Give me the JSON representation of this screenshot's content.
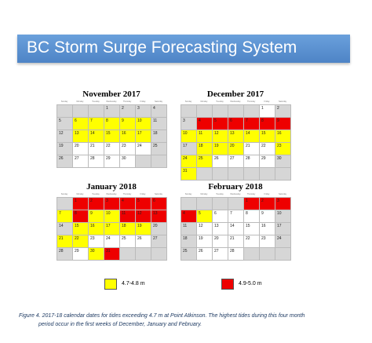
{
  "header": {
    "title": "BC Storm Surge Forecasting System"
  },
  "colors": {
    "yellow": "#ffff00",
    "red": "#ee0000",
    "gray": "#d6d6d6"
  },
  "weekday_labels": [
    "Sunday",
    "Monday",
    "Tuesday",
    "Wednesday",
    "Thursday",
    "Friday",
    "Saturday"
  ],
  "calendars": [
    {
      "title": "November 2017",
      "cells": [
        [
          "",
          "gray"
        ],
        [
          "",
          "gray"
        ],
        [
          "",
          "gray"
        ],
        [
          "1",
          "gray"
        ],
        [
          "2",
          "gray"
        ],
        [
          "3",
          "gray"
        ],
        [
          "4",
          "gray"
        ],
        [
          "5",
          "gray"
        ],
        [
          "6",
          "yellow"
        ],
        [
          "7",
          "yellow"
        ],
        [
          "8",
          "yellow"
        ],
        [
          "9",
          "yellow"
        ],
        [
          "10",
          "yellow"
        ],
        [
          "11",
          "gray"
        ],
        [
          "12",
          "gray"
        ],
        [
          "13",
          "yellow"
        ],
        [
          "14",
          "yellow"
        ],
        [
          "15",
          "yellow"
        ],
        [
          "16",
          "yellow"
        ],
        [
          "17",
          "yellow"
        ],
        [
          "18",
          "gray"
        ],
        [
          "19",
          "gray"
        ],
        [
          "20",
          ""
        ],
        [
          "21",
          ""
        ],
        [
          "22",
          ""
        ],
        [
          "23",
          ""
        ],
        [
          "24",
          ""
        ],
        [
          "25",
          "gray"
        ],
        [
          "26",
          "gray"
        ],
        [
          "27",
          ""
        ],
        [
          "28",
          ""
        ],
        [
          "29",
          ""
        ],
        [
          "30",
          ""
        ],
        [
          "",
          "gray"
        ],
        [
          "",
          "gray"
        ]
      ]
    },
    {
      "title": "December 2017",
      "cells": [
        [
          "",
          "gray"
        ],
        [
          "",
          "gray"
        ],
        [
          "",
          "gray"
        ],
        [
          "",
          "gray"
        ],
        [
          "",
          "gray"
        ],
        [
          "1",
          ""
        ],
        [
          "2",
          "gray"
        ],
        [
          "3",
          "gray"
        ],
        [
          "4",
          "red"
        ],
        [
          "5",
          "red"
        ],
        [
          "6",
          "red"
        ],
        [
          "7",
          "red"
        ],
        [
          "8",
          "red"
        ],
        [
          "9",
          "red"
        ],
        [
          "10",
          "yellow"
        ],
        [
          "11",
          "yellow"
        ],
        [
          "12",
          "yellow"
        ],
        [
          "13",
          "yellow"
        ],
        [
          "14",
          "yellow"
        ],
        [
          "15",
          "yellow"
        ],
        [
          "16",
          "yellow"
        ],
        [
          "17",
          "gray"
        ],
        [
          "18",
          "yellow"
        ],
        [
          "19",
          "yellow"
        ],
        [
          "20",
          "yellow"
        ],
        [
          "21",
          ""
        ],
        [
          "22",
          ""
        ],
        [
          "23",
          "yellow"
        ],
        [
          "24",
          "yellow"
        ],
        [
          "25",
          "yellow"
        ],
        [
          "26",
          ""
        ],
        [
          "27",
          ""
        ],
        [
          "28",
          ""
        ],
        [
          "29",
          ""
        ],
        [
          "30",
          "gray"
        ],
        [
          "31",
          "yellow"
        ],
        [
          "",
          "gray"
        ],
        [
          "",
          "gray"
        ],
        [
          "",
          "gray"
        ],
        [
          "",
          "gray"
        ],
        [
          "",
          "gray"
        ],
        [
          "",
          "gray"
        ]
      ]
    },
    {
      "title": "January 2018",
      "cells": [
        [
          "",
          "gray"
        ],
        [
          "1",
          "red"
        ],
        [
          "2",
          "red"
        ],
        [
          "3",
          "red"
        ],
        [
          "4",
          "red"
        ],
        [
          "5",
          "red"
        ],
        [
          "6",
          "red"
        ],
        [
          "7",
          "yellow"
        ],
        [
          "8",
          "red"
        ],
        [
          "9",
          "yellow"
        ],
        [
          "10",
          "yellow"
        ],
        [
          "11",
          "red"
        ],
        [
          "12",
          "red"
        ],
        [
          "13",
          "red"
        ],
        [
          "14",
          "gray"
        ],
        [
          "15",
          "yellow"
        ],
        [
          "16",
          "yellow"
        ],
        [
          "17",
          "yellow"
        ],
        [
          "18",
          "yellow"
        ],
        [
          "19",
          "yellow"
        ],
        [
          "20",
          "gray"
        ],
        [
          "21",
          "yellow"
        ],
        [
          "22",
          "yellow"
        ],
        [
          "23",
          ""
        ],
        [
          "24",
          ""
        ],
        [
          "25",
          ""
        ],
        [
          "26",
          ""
        ],
        [
          "27",
          "gray"
        ],
        [
          "28",
          "gray"
        ],
        [
          "29",
          ""
        ],
        [
          "30",
          "yellow"
        ],
        [
          "31",
          "red"
        ],
        [
          "",
          "gray"
        ],
        [
          "",
          "gray"
        ],
        [
          "",
          "gray"
        ]
      ]
    },
    {
      "title": "February 2018",
      "cells": [
        [
          "",
          "gray"
        ],
        [
          "",
          "gray"
        ],
        [
          "",
          "gray"
        ],
        [
          "",
          "gray"
        ],
        [
          "1",
          "red"
        ],
        [
          "2",
          "red"
        ],
        [
          "3",
          "red"
        ],
        [
          "4",
          "red"
        ],
        [
          "5",
          "yellow"
        ],
        [
          "6",
          ""
        ],
        [
          "7",
          ""
        ],
        [
          "8",
          ""
        ],
        [
          "9",
          ""
        ],
        [
          "10",
          "gray"
        ],
        [
          "11",
          "gray"
        ],
        [
          "12",
          ""
        ],
        [
          "13",
          ""
        ],
        [
          "14",
          ""
        ],
        [
          "15",
          ""
        ],
        [
          "16",
          ""
        ],
        [
          "17",
          "gray"
        ],
        [
          "18",
          "gray"
        ],
        [
          "19",
          ""
        ],
        [
          "20",
          ""
        ],
        [
          "21",
          ""
        ],
        [
          "22",
          ""
        ],
        [
          "23",
          ""
        ],
        [
          "24",
          "gray"
        ],
        [
          "25",
          "gray"
        ],
        [
          "26",
          ""
        ],
        [
          "27",
          ""
        ],
        [
          "28",
          ""
        ],
        [
          "",
          "gray"
        ],
        [
          "",
          "gray"
        ],
        [
          "",
          "gray"
        ]
      ]
    }
  ],
  "legend": [
    {
      "label": "4.7-4.8 m",
      "color": "#ffff00"
    },
    {
      "label": "4.9-5.0 m",
      "color": "#ee0000"
    }
  ],
  "caption": {
    "line1": "Figure 4.  2017-18 calendar dates for tides exceeding 4.7 m at Point Atkinson.  The highest tides during this four month",
    "line2": "period occur in the first weeks of December, January and February."
  }
}
